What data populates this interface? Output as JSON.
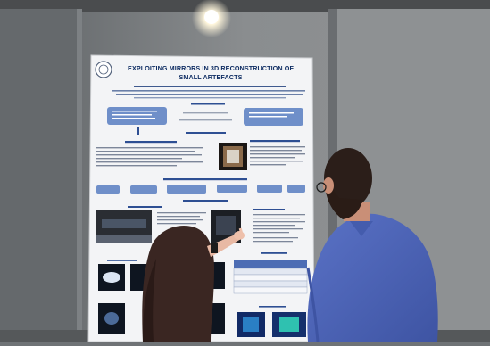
{
  "poster": {
    "title_line1": "EXPLOITING MIRRORS IN 3D RECONSTRUCTION OF",
    "title_line2": "SMALL ARTEFACTS"
  },
  "colors": {
    "wall": "#7a7e80",
    "poster_paper": "#f3f4f6",
    "poster_title": "#0f2d63",
    "section_box": "#6f8fc9",
    "shirt": "#4f66b8",
    "hair": "#3a2622"
  }
}
